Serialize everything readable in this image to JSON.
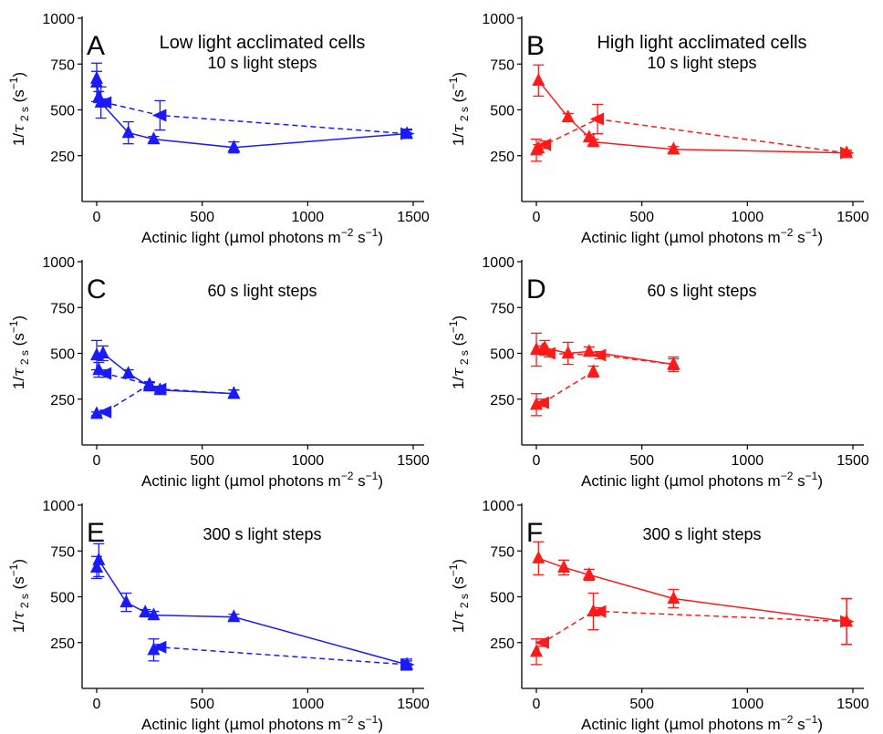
{
  "figure": {
    "x_axis_label_parts": [
      "Actinic light (",
      "μ",
      "mol photons m",
      "−2",
      " s",
      "−1",
      ")"
    ],
    "y_axis_label_parts": [
      "1/",
      "τ",
      " 2 s",
      " (s",
      "−1",
      ")"
    ],
    "colors": {
      "low_light": "#1a1aff",
      "high_light": "#ff1a1a"
    }
  },
  "chart_data": [
    {
      "type": "line",
      "panel": "A",
      "title": "Low light acclimated cells",
      "subtitle": "10 s light steps",
      "color": "#1a1aff",
      "xlim": [
        0,
        1500
      ],
      "ylim": [
        0,
        1000
      ],
      "xticks": [
        0,
        500,
        1000,
        1500
      ],
      "yticks": [
        250,
        500,
        750,
        1000
      ],
      "series": [
        {
          "style": "solid",
          "direction": "increasing light",
          "x": [
            0,
            20,
            150,
            270,
            650,
            1470
          ],
          "y": [
            650,
            540,
            375,
            340,
            295,
            370
          ],
          "err": [
            105,
            85,
            60,
            15,
            30,
            25
          ]
        },
        {
          "style": "dashed",
          "direction": "decreasing light",
          "x": [
            1470,
            300,
            40,
            10,
            0
          ],
          "y": [
            370,
            470,
            540,
            570,
            670
          ],
          "err": [
            20,
            80,
            20,
            30,
            40
          ]
        }
      ]
    },
    {
      "type": "line",
      "panel": "B",
      "title": "High light acclimated cells",
      "subtitle": "10 s light steps",
      "color": "#ff1a1a",
      "xlim": [
        0,
        1500
      ],
      "ylim": [
        0,
        1000
      ],
      "xticks": [
        0,
        500,
        1000,
        1500
      ],
      "yticks": [
        250,
        500,
        750,
        1000
      ],
      "series": [
        {
          "style": "solid",
          "direction": "increasing light",
          "x": [
            10,
            150,
            250,
            270,
            650,
            1470
          ],
          "y": [
            660,
            460,
            350,
            325,
            285,
            265
          ],
          "err": [
            85,
            20,
            15,
            15,
            15,
            15
          ]
        },
        {
          "style": "dashed",
          "direction": "decreasing light",
          "x": [
            1470,
            290,
            40,
            10,
            0
          ],
          "y": [
            265,
            450,
            310,
            290,
            280
          ],
          "err": [
            15,
            80,
            20,
            20,
            60
          ]
        }
      ]
    },
    {
      "type": "line",
      "panel": "C",
      "title": "",
      "subtitle": "60 s light steps",
      "color": "#1a1aff",
      "xlim": [
        0,
        1500
      ],
      "ylim": [
        0,
        1000
      ],
      "xticks": [
        0,
        500,
        1000,
        1500
      ],
      "yticks": [
        250,
        500,
        750,
        1000
      ],
      "series": [
        {
          "style": "solid",
          "direction": "increasing light",
          "x": [
            0,
            30,
            150,
            250,
            300,
            650
          ],
          "y": [
            490,
            500,
            390,
            320,
            300,
            280
          ],
          "err": [
            80,
            40,
            20,
            20,
            15,
            20
          ]
        },
        {
          "style": "dashed",
          "direction": "decreasing light",
          "x": [
            650,
            300,
            250,
            40,
            10
          ],
          "y": [
            280,
            305,
            330,
            390,
            410
          ],
          "err": [
            20,
            15,
            15,
            20,
            40
          ]
        },
        {
          "style": "dashed",
          "direction": "decreasing light (continued)",
          "x": [
            250,
            40,
            0
          ],
          "y": [
            330,
            180,
            170
          ],
          "err": [
            10,
            10,
            10
          ]
        }
      ]
    },
    {
      "type": "line",
      "panel": "D",
      "title": "",
      "subtitle": "60 s light steps",
      "color": "#ff1a1a",
      "xlim": [
        0,
        1500
      ],
      "ylim": [
        0,
        1000
      ],
      "xticks": [
        0,
        500,
        1000,
        1500
      ],
      "yticks": [
        250,
        500,
        750,
        1000
      ],
      "series": [
        {
          "style": "solid",
          "direction": "increasing light",
          "x": [
            0,
            40,
            150,
            250,
            650
          ],
          "y": [
            520,
            530,
            500,
            510,
            440
          ],
          "err": [
            90,
            40,
            60,
            25,
            40
          ]
        },
        {
          "style": "dashed",
          "direction": "decreasing light",
          "x": [
            650,
            300,
            60,
            30
          ],
          "y": [
            440,
            490,
            500,
            520
          ],
          "err": [
            30,
            20,
            20,
            20
          ]
        },
        {
          "style": "dashed",
          "direction": "decreasing light (continued)",
          "x": [
            270,
            30,
            0
          ],
          "y": [
            400,
            230,
            220
          ],
          "err": [
            30,
            20,
            60
          ]
        }
      ]
    },
    {
      "type": "line",
      "panel": "E",
      "title": "",
      "subtitle": "300 s light steps",
      "color": "#1a1aff",
      "xlim": [
        0,
        1500
      ],
      "ylim": [
        0,
        1000
      ],
      "xticks": [
        0,
        500,
        1000,
        1500
      ],
      "yticks": [
        250,
        500,
        750,
        1000
      ],
      "series": [
        {
          "style": "solid",
          "direction": "increasing light",
          "x": [
            0,
            10,
            140,
            230,
            270,
            650,
            1470
          ],
          "y": [
            660,
            700,
            470,
            415,
            400,
            390,
            130
          ],
          "err": [
            60,
            90,
            50,
            15,
            20,
            15,
            30
          ]
        },
        {
          "style": "dashed",
          "direction": "decreasing light",
          "x": [
            1470,
            300,
            270
          ],
          "y": [
            130,
            225,
            210
          ],
          "err": [
            20,
            15,
            60
          ]
        }
      ]
    },
    {
      "type": "line",
      "panel": "F",
      "title": "",
      "subtitle": "300 s light steps",
      "color": "#ff1a1a",
      "xlim": [
        0,
        1500
      ],
      "ylim": [
        0,
        1000
      ],
      "xticks": [
        0,
        500,
        1000,
        1500
      ],
      "yticks": [
        250,
        500,
        750,
        1000
      ],
      "series": [
        {
          "style": "solid",
          "direction": "increasing light",
          "x": [
            10,
            130,
            250,
            650,
            1470
          ],
          "y": [
            710,
            660,
            620,
            490,
            365
          ],
          "err": [
            90,
            40,
            30,
            50,
            125
          ]
        },
        {
          "style": "dashed",
          "direction": "decreasing light",
          "x": [
            1470,
            300,
            270,
            30,
            0
          ],
          "y": [
            365,
            420,
            420,
            250,
            200
          ],
          "err": [
            125,
            20,
            100,
            20,
            70
          ]
        }
      ]
    }
  ]
}
